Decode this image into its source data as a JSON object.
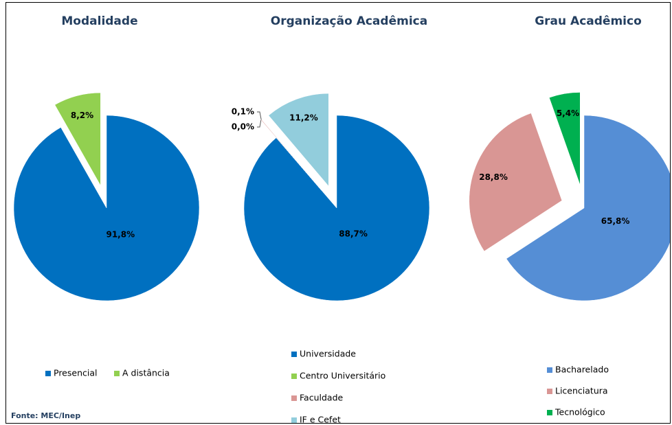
{
  "chart_data": [
    {
      "type": "pie",
      "title": "Modalidade",
      "categories": [
        "Presencial",
        "A distância"
      ],
      "values": [
        91.8,
        8.2
      ],
      "value_labels": [
        "91,8%",
        "8,2%"
      ],
      "colors": [
        "#0070c0",
        "#92d050"
      ]
    },
    {
      "type": "pie",
      "title": "Organização Acadêmica",
      "categories": [
        "Universidade",
        "Centro Universitário",
        "Faculdade",
        "IF e Cefet"
      ],
      "values": [
        88.7,
        0.0,
        0.1,
        11.2
      ],
      "value_labels": [
        "88,7%",
        "0,0%",
        "0,1%",
        "11,2%"
      ],
      "colors": [
        "#0070c0",
        "#92d050",
        "#da9694",
        "#92cddc"
      ]
    },
    {
      "type": "pie",
      "title": "Grau Acadêmico",
      "categories": [
        "Bacharelado",
        "Licenciatura",
        "Tecnológico"
      ],
      "values": [
        65.8,
        28.8,
        5.4
      ],
      "value_labels": [
        "65,8%",
        "28,8%",
        "5,4%"
      ],
      "colors": [
        "#558ed5",
        "#d99694",
        "#00b050"
      ]
    }
  ],
  "source": "Fonte: MEC/Inep"
}
